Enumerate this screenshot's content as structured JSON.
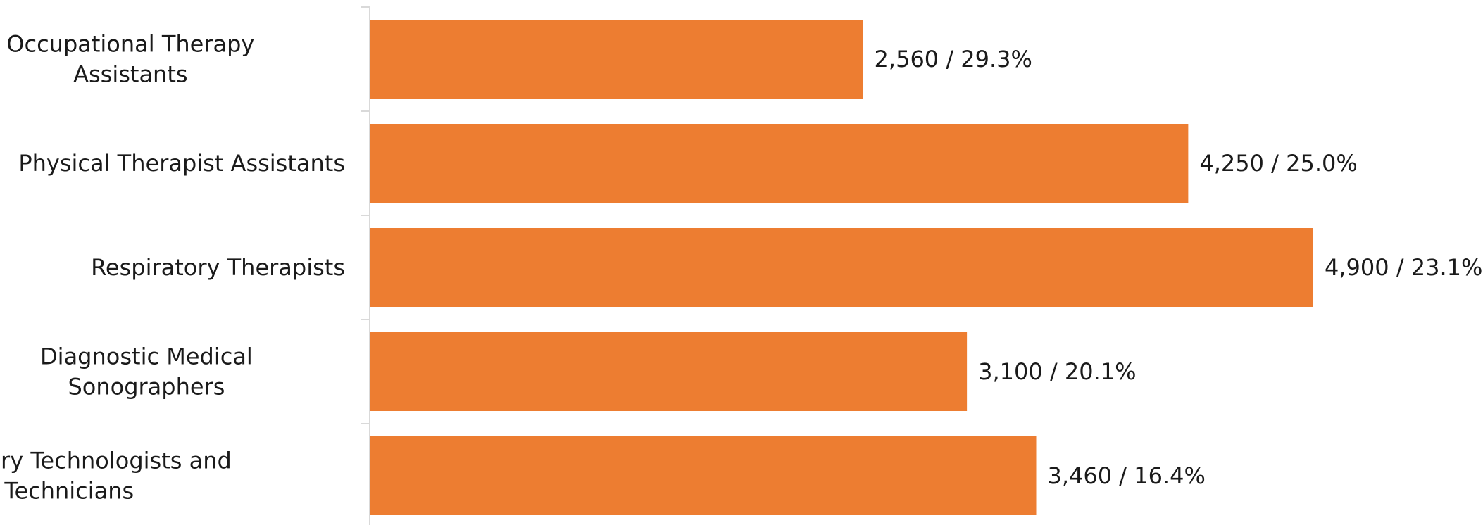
{
  "chart_data": {
    "type": "bar",
    "orientation": "horizontal",
    "categories": [
      [
        "Occupational Therapy",
        "Assistants"
      ],
      [
        "Physical Therapist Assistants"
      ],
      [
        "Respiratory Therapists"
      ],
      [
        "Diagnostic Medical",
        "Sonographers"
      ],
      [
        "Veterinary Technologists and",
        "Technicians"
      ]
    ],
    "values": [
      2560,
      4250,
      4900,
      3100,
      3460
    ],
    "data_labels": [
      "2,560 / 29.3%",
      "4,250 / 25.0%",
      "4,900 / 23.1%",
      "3,100 / 20.1%",
      "3,460 / 16.4%"
    ],
    "xlim": [
      0,
      4900
    ],
    "grid": false,
    "legend": "none",
    "bar_color": "#ED7D31",
    "axis_color": "#D9D9D9"
  }
}
